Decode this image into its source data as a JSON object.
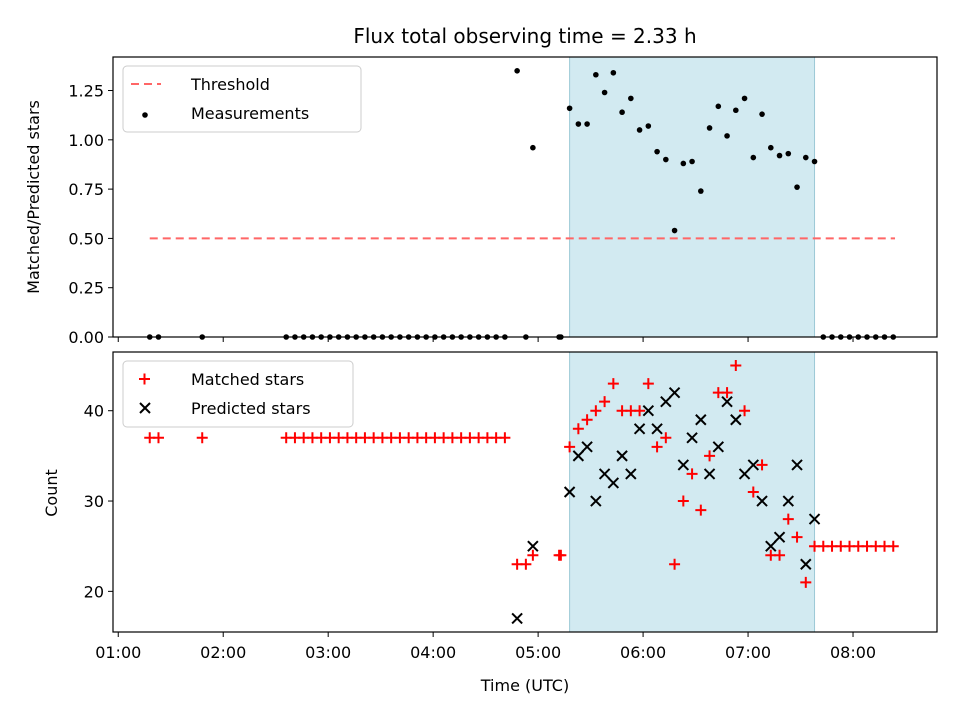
{
  "chart_data": [
    {
      "type": "scatter",
      "title": "Flux total observing time = 2.33 h",
      "xlabel": "",
      "ylabel": "Matched/Predicted stars",
      "xlim": [
        "00:57",
        "08:48"
      ],
      "ylim": [
        0,
        1.42
      ],
      "yticks": [
        "0.00",
        "0.25",
        "0.50",
        "0.75",
        "1.00",
        "1.25"
      ],
      "legend": {
        "position": "upper-left",
        "entries": [
          "Threshold",
          "Measurements"
        ]
      },
      "shaded_region": {
        "x0": "05:18",
        "x1": "07:38",
        "color": "#add8e6"
      },
      "threshold": {
        "name": "Threshold",
        "y": 0.5,
        "x0": "01:18",
        "x1": "08:24",
        "color": "#ff6666"
      },
      "series": [
        {
          "name": "Measurements",
          "color": "#000000",
          "points": [
            [
              "01:18",
              0
            ],
            [
              "01:23",
              0
            ],
            [
              "01:48",
              0
            ],
            [
              "02:36",
              0
            ],
            [
              "02:41",
              0
            ],
            [
              "02:46",
              0
            ],
            [
              "02:51",
              0
            ],
            [
              "02:56",
              0
            ],
            [
              "03:01",
              0
            ],
            [
              "03:06",
              0
            ],
            [
              "03:11",
              0
            ],
            [
              "03:16",
              0
            ],
            [
              "03:21",
              0
            ],
            [
              "03:26",
              0
            ],
            [
              "03:31",
              0
            ],
            [
              "03:36",
              0
            ],
            [
              "03:41",
              0
            ],
            [
              "03:46",
              0
            ],
            [
              "03:51",
              0
            ],
            [
              "03:56",
              0
            ],
            [
              "04:01",
              0
            ],
            [
              "04:06",
              0
            ],
            [
              "04:11",
              0
            ],
            [
              "04:16",
              0
            ],
            [
              "04:21",
              0
            ],
            [
              "04:26",
              0
            ],
            [
              "04:31",
              0
            ],
            [
              "04:36",
              0
            ],
            [
              "04:41",
              0
            ],
            [
              "04:48",
              1.35
            ],
            [
              "04:53",
              0
            ],
            [
              "04:57",
              0.96
            ],
            [
              "05:12",
              0
            ],
            [
              "05:13",
              0
            ],
            [
              "05:18",
              1.16
            ],
            [
              "05:23",
              1.08
            ],
            [
              "05:28",
              1.08
            ],
            [
              "05:33",
              1.33
            ],
            [
              "05:38",
              1.24
            ],
            [
              "05:43",
              1.34
            ],
            [
              "05:48",
              1.14
            ],
            [
              "05:53",
              1.21
            ],
            [
              "05:58",
              1.05
            ],
            [
              "06:03",
              1.07
            ],
            [
              "06:08",
              0.94
            ],
            [
              "06:13",
              0.9
            ],
            [
              "06:18",
              0.54
            ],
            [
              "06:23",
              0.88
            ],
            [
              "06:28",
              0.89
            ],
            [
              "06:33",
              0.74
            ],
            [
              "06:38",
              1.06
            ],
            [
              "06:43",
              1.17
            ],
            [
              "06:48",
              1.02
            ],
            [
              "06:53",
              1.15
            ],
            [
              "06:58",
              1.21
            ],
            [
              "07:03",
              0.91
            ],
            [
              "07:08",
              1.13
            ],
            [
              "07:13",
              0.96
            ],
            [
              "07:18",
              0.92
            ],
            [
              "07:23",
              0.93
            ],
            [
              "07:28",
              0.76
            ],
            [
              "07:33",
              0.91
            ],
            [
              "07:38",
              0.89
            ],
            [
              "07:43",
              0
            ],
            [
              "07:48",
              0
            ],
            [
              "07:53",
              0
            ],
            [
              "07:58",
              0
            ],
            [
              "08:03",
              0
            ],
            [
              "08:08",
              0
            ],
            [
              "08:13",
              0
            ],
            [
              "08:18",
              0
            ],
            [
              "08:23",
              0
            ]
          ]
        }
      ]
    },
    {
      "type": "scatter",
      "title": "",
      "xlabel": "Time (UTC)",
      "ylabel": "Count",
      "xlim": [
        "00:57",
        "08:48"
      ],
      "ylim": [
        15.5,
        46.5
      ],
      "yticks": [
        "20",
        "30",
        "40"
      ],
      "xticks": [
        "01:00",
        "02:00",
        "03:00",
        "04:00",
        "05:00",
        "06:00",
        "07:00",
        "08:00"
      ],
      "legend": {
        "position": "upper-left",
        "entries": [
          "Matched stars",
          "Predicted stars"
        ]
      },
      "shaded_region": {
        "x0": "05:18",
        "x1": "07:38",
        "color": "#add8e6"
      },
      "series": [
        {
          "name": "Matched stars",
          "marker": "plus",
          "color": "#ff0000",
          "points": [
            [
              "01:18",
              37
            ],
            [
              "01:23",
              37
            ],
            [
              "01:48",
              37
            ],
            [
              "02:36",
              37
            ],
            [
              "02:41",
              37
            ],
            [
              "02:46",
              37
            ],
            [
              "02:51",
              37
            ],
            [
              "02:56",
              37
            ],
            [
              "03:01",
              37
            ],
            [
              "03:06",
              37
            ],
            [
              "03:11",
              37
            ],
            [
              "03:16",
              37
            ],
            [
              "03:21",
              37
            ],
            [
              "03:26",
              37
            ],
            [
              "03:31",
              37
            ],
            [
              "03:36",
              37
            ],
            [
              "03:41",
              37
            ],
            [
              "03:46",
              37
            ],
            [
              "03:51",
              37
            ],
            [
              "03:56",
              37
            ],
            [
              "04:01",
              37
            ],
            [
              "04:06",
              37
            ],
            [
              "04:11",
              37
            ],
            [
              "04:16",
              37
            ],
            [
              "04:21",
              37
            ],
            [
              "04:26",
              37
            ],
            [
              "04:31",
              37
            ],
            [
              "04:36",
              37
            ],
            [
              "04:41",
              37
            ],
            [
              "04:48",
              23
            ],
            [
              "04:53",
              23
            ],
            [
              "04:57",
              24
            ],
            [
              "05:12",
              24
            ],
            [
              "05:13",
              24
            ],
            [
              "05:18",
              36
            ],
            [
              "05:23",
              38
            ],
            [
              "05:28",
              39
            ],
            [
              "05:33",
              40
            ],
            [
              "05:38",
              41
            ],
            [
              "05:43",
              43
            ],
            [
              "05:48",
              40
            ],
            [
              "05:53",
              40
            ],
            [
              "05:58",
              40
            ],
            [
              "06:03",
              43
            ],
            [
              "06:08",
              36
            ],
            [
              "06:13",
              37
            ],
            [
              "06:18",
              23
            ],
            [
              "06:23",
              30
            ],
            [
              "06:28",
              33
            ],
            [
              "06:33",
              29
            ],
            [
              "06:38",
              35
            ],
            [
              "06:43",
              42
            ],
            [
              "06:48",
              42
            ],
            [
              "06:53",
              45
            ],
            [
              "06:58",
              40
            ],
            [
              "07:03",
              31
            ],
            [
              "07:08",
              34
            ],
            [
              "07:13",
              24
            ],
            [
              "07:18",
              24
            ],
            [
              "07:23",
              28
            ],
            [
              "07:28",
              26
            ],
            [
              "07:33",
              21
            ],
            [
              "07:38",
              25
            ],
            [
              "07:43",
              25
            ],
            [
              "07:48",
              25
            ],
            [
              "07:53",
              25
            ],
            [
              "07:58",
              25
            ],
            [
              "08:03",
              25
            ],
            [
              "08:08",
              25
            ],
            [
              "08:13",
              25
            ],
            [
              "08:18",
              25
            ],
            [
              "08:23",
              25
            ]
          ]
        },
        {
          "name": "Predicted stars",
          "marker": "x",
          "color": "#000000",
          "points": [
            [
              "04:48",
              17
            ],
            [
              "04:57",
              25
            ],
            [
              "05:18",
              31
            ],
            [
              "05:23",
              35
            ],
            [
              "05:28",
              36
            ],
            [
              "05:33",
              30
            ],
            [
              "05:38",
              33
            ],
            [
              "05:43",
              32
            ],
            [
              "05:48",
              35
            ],
            [
              "05:53",
              33
            ],
            [
              "05:58",
              38
            ],
            [
              "06:03",
              40
            ],
            [
              "06:08",
              38
            ],
            [
              "06:13",
              41
            ],
            [
              "06:18",
              42
            ],
            [
              "06:23",
              34
            ],
            [
              "06:28",
              37
            ],
            [
              "06:33",
              39
            ],
            [
              "06:38",
              33
            ],
            [
              "06:43",
              36
            ],
            [
              "06:48",
              41
            ],
            [
              "06:53",
              39
            ],
            [
              "06:58",
              33
            ],
            [
              "07:03",
              34
            ],
            [
              "07:08",
              30
            ],
            [
              "07:13",
              25
            ],
            [
              "07:18",
              26
            ],
            [
              "07:23",
              30
            ],
            [
              "07:28",
              34
            ],
            [
              "07:33",
              23
            ],
            [
              "07:38",
              28
            ]
          ]
        }
      ]
    }
  ]
}
